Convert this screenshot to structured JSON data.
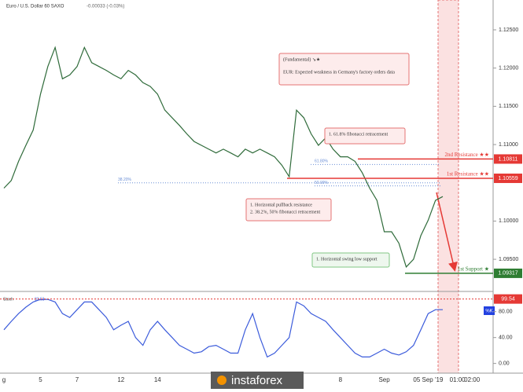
{
  "chart_data": [
    {
      "type": "line",
      "title": "Euro / U.S. Dollar  60  SAXO",
      "subtitle": "-0.00033 (-0.03%)",
      "series": [
        {
          "name": "Price",
          "color": "#2f6b3a",
          "values": [
            1.1043,
            1.1053,
            1.1078,
            1.1099,
            1.1119,
            1.1166,
            1.1202,
            1.1227,
            1.1186,
            1.1191,
            1.1202,
            1.1227,
            1.1207,
            1.1202,
            1.1197,
            1.1191,
            1.1186,
            1.1197,
            1.1191,
            1.1181,
            1.1176,
            1.1166,
            1.1145,
            1.1135,
            1.1125,
            1.1114,
            1.1104,
            1.1099,
            1.1094,
            1.1089,
            1.1094,
            1.1089,
            1.1084,
            1.1094,
            1.1089,
            1.1094,
            1.1089,
            1.1084,
            1.1073,
            1.1058,
            1.1145,
            1.1135,
            1.1114,
            1.1099,
            1.1109,
            1.1094,
            1.1084,
            1.1084,
            1.1078,
            1.1063,
            1.1043,
            1.1027,
            1.0986,
            1.0986,
            1.0971,
            1.094,
            1.095,
            1.0981,
            1.1001,
            1.1027,
            1.1032,
            null,
            null,
            null,
            null,
            null,
            null
          ]
        }
      ],
      "ylim": [
        1.0909,
        1.1289
      ],
      "yticks": [
        {
          "value": 1.095,
          "label": "1.09500"
        },
        {
          "value": 1.1,
          "label": "1.10000"
        },
        {
          "value": 1.11,
          "label": "1.11000"
        },
        {
          "value": 1.115,
          "label": "1.11500"
        },
        {
          "value": 1.12,
          "label": "1.12000"
        },
        {
          "value": 1.125,
          "label": "1.12500"
        }
      ],
      "levels": [
        {
          "name": "2nd Resistance ★★",
          "value": 1.10811,
          "color": "#e53935"
        },
        {
          "name": "1st Resistance ★★",
          "value": 1.10559,
          "color": "#e53935"
        },
        {
          "name": "1st Support ★",
          "value": 1.09317,
          "color": "#2e7d32"
        }
      ],
      "fib_levels": [
        {
          "label": "38.20%",
          "value": 1.105
        },
        {
          "label": "50.00%",
          "value": 1.1046
        },
        {
          "label": "61.80%",
          "value": 1.1074
        }
      ],
      "annotations": [
        {
          "lines": [
            "(Fundamental) ↘★",
            "EUR: Expected weakness in Germany's factory orders data"
          ]
        },
        {
          "lines": [
            "1. 61.8% fibonacci retracement"
          ]
        },
        {
          "lines": [
            "1. Horizontal pullback resistance",
            "2. 38.2%, 50% fibonacci retracement"
          ]
        },
        {
          "lines": [
            "1. Horizontal swing low support"
          ]
        }
      ]
    },
    {
      "type": "line",
      "title": "Stoch",
      "subtitle": "83.53",
      "categories": [
        "g",
        null,
        null,
        null,
        null,
        "5",
        null,
        null,
        null,
        null,
        "7",
        null,
        null,
        null,
        null,
        null,
        "12",
        null,
        null,
        null,
        null,
        "14",
        null,
        null,
        null,
        null,
        null,
        null,
        null,
        null,
        null,
        null,
        null,
        null,
        null,
        null,
        null,
        null,
        null,
        null,
        null,
        null,
        null,
        null,
        null,
        null,
        "8",
        null,
        null,
        null,
        null,
        null,
        "Sep",
        null,
        null,
        null,
        null,
        null,
        "05 Sep '19",
        null,
        null,
        null,
        "01:00",
        null,
        "02:00",
        null,
        null
      ],
      "series": [
        {
          "name": "%K",
          "color": "#3b5bdb",
          "values": [
            52,
            65,
            77,
            87,
            95,
            99,
            99,
            95,
            77,
            71,
            83,
            95,
            95,
            83,
            71,
            52,
            59,
            65,
            40,
            28,
            52,
            65,
            52,
            40,
            28,
            22,
            16,
            18,
            26,
            28,
            22,
            16,
            16,
            52,
            77,
            40,
            10,
            16,
            28,
            40,
            95,
            89,
            77,
            71,
            65,
            52,
            40,
            28,
            16,
            10,
            10,
            16,
            22,
            16,
            13,
            18,
            28,
            52,
            77,
            83,
            83,
            null,
            null,
            null,
            null,
            null,
            null
          ]
        }
      ],
      "ylim": [
        -15,
        110
      ],
      "yticks": [
        {
          "value": 0,
          "label": "0.00"
        },
        {
          "value": 40,
          "label": "40.00"
        },
        {
          "value": 80,
          "label": "80.00"
        }
      ],
      "level": 99.54
    }
  ],
  "logo": "instaforex"
}
